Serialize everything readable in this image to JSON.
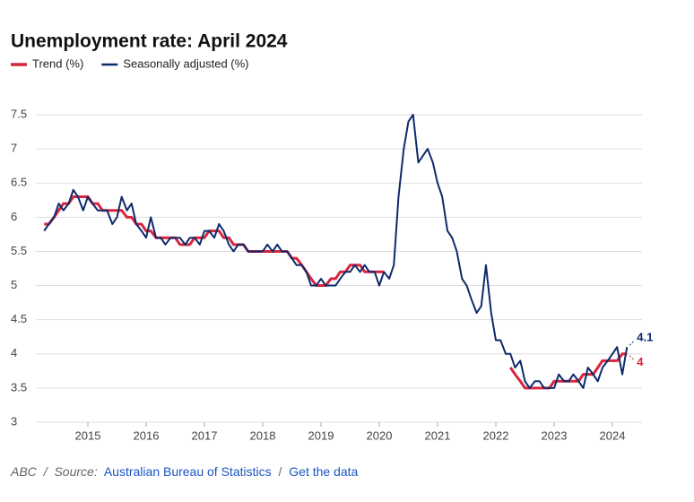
{
  "chart_data": {
    "type": "line",
    "title": "Unemployment rate: April 2024",
    "xlim": [
      2014,
      2024.6
    ],
    "xticks": [
      2015,
      2016,
      2017,
      2018,
      2019,
      2020,
      2021,
      2022,
      2023,
      2024
    ],
    "ylim": [
      3,
      7.5
    ],
    "yticks": [
      3,
      3.5,
      4,
      4.5,
      5,
      5.5,
      6,
      6.5,
      7,
      7.5
    ],
    "grid": true,
    "legend": "top-left",
    "x": [
      2014.25,
      2014.33,
      2014.42,
      2014.5,
      2014.58,
      2014.67,
      2014.75,
      2014.83,
      2014.92,
      2015,
      2015.08,
      2015.17,
      2015.25,
      2015.33,
      2015.42,
      2015.5,
      2015.58,
      2015.67,
      2015.75,
      2015.83,
      2015.92,
      2016,
      2016.08,
      2016.17,
      2016.25,
      2016.33,
      2016.42,
      2016.5,
      2016.58,
      2016.67,
      2016.75,
      2016.83,
      2016.92,
      2017,
      2017.08,
      2017.17,
      2017.25,
      2017.33,
      2017.42,
      2017.5,
      2017.58,
      2017.67,
      2017.75,
      2017.83,
      2017.92,
      2018,
      2018.08,
      2018.17,
      2018.25,
      2018.33,
      2018.42,
      2018.5,
      2018.58,
      2018.67,
      2018.75,
      2018.83,
      2018.92,
      2019,
      2019.08,
      2019.17,
      2019.25,
      2019.33,
      2019.42,
      2019.5,
      2019.58,
      2019.67,
      2019.75,
      2019.83,
      2019.92,
      2020,
      2020.08,
      2020.17,
      2020.25,
      2020.33,
      2020.42,
      2020.5,
      2020.58,
      2020.67,
      2020.75,
      2020.83,
      2020.92,
      2021,
      2021.08,
      2021.17,
      2021.25,
      2021.33,
      2021.42,
      2021.5,
      2021.58,
      2021.67,
      2021.75,
      2021.83,
      2021.92,
      2022,
      2022.08,
      2022.17,
      2022.25,
      2022.33,
      2022.42,
      2022.5,
      2022.58,
      2022.67,
      2022.75,
      2022.83,
      2022.92,
      2023,
      2023.08,
      2023.17,
      2023.25,
      2023.33,
      2023.42,
      2023.5,
      2023.58,
      2023.67,
      2023.75,
      2023.83,
      2023.92,
      2024,
      2024.08,
      2024.17,
      2024.25
    ],
    "series": [
      {
        "name": "Trend (%)",
        "color": "#d7263d",
        "width": 3,
        "end_label": "4",
        "values": [
          5.9,
          5.9,
          6.0,
          6.1,
          6.2,
          6.2,
          6.3,
          6.3,
          6.3,
          6.3,
          6.2,
          6.2,
          6.1,
          6.1,
          6.1,
          6.1,
          6.1,
          6.0,
          6.0,
          5.9,
          5.9,
          5.8,
          5.8,
          5.7,
          5.7,
          5.7,
          5.7,
          5.7,
          5.6,
          5.6,
          5.6,
          5.7,
          5.7,
          5.7,
          5.8,
          5.8,
          5.8,
          5.7,
          5.7,
          5.6,
          5.6,
          5.6,
          5.5,
          5.5,
          5.5,
          5.5,
          5.5,
          5.5,
          5.5,
          5.5,
          5.5,
          5.4,
          5.4,
          5.3,
          5.2,
          5.1,
          5.0,
          5.0,
          5.0,
          5.1,
          5.1,
          5.2,
          5.2,
          5.3,
          5.3,
          5.3,
          5.2,
          5.2,
          5.2,
          5.2,
          5.2,
          null,
          null,
          null,
          null,
          null,
          null,
          null,
          null,
          null,
          null,
          null,
          null,
          null,
          null,
          null,
          null,
          null,
          null,
          null,
          null,
          null,
          null,
          null,
          null,
          null,
          3.8,
          3.7,
          3.6,
          3.5,
          3.5,
          3.5,
          3.5,
          3.5,
          3.5,
          3.6,
          3.6,
          3.6,
          3.6,
          3.6,
          3.6,
          3.7,
          3.7,
          3.7,
          3.8,
          3.9,
          3.9,
          3.9,
          3.9,
          4.0,
          4.0
        ]
      },
      {
        "name": "Seasonally adjusted (%)",
        "color": "#0d2a6b",
        "width": 2,
        "end_label": "4.1",
        "values": [
          5.8,
          5.9,
          6.0,
          6.2,
          6.1,
          6.2,
          6.4,
          6.3,
          6.1,
          6.3,
          6.2,
          6.1,
          6.1,
          6.1,
          5.9,
          6.0,
          6.3,
          6.1,
          6.2,
          5.9,
          5.8,
          5.7,
          6.0,
          5.7,
          5.7,
          5.6,
          5.7,
          5.7,
          5.7,
          5.6,
          5.7,
          5.7,
          5.6,
          5.8,
          5.8,
          5.7,
          5.9,
          5.8,
          5.6,
          5.5,
          5.6,
          5.6,
          5.5,
          5.5,
          5.5,
          5.5,
          5.6,
          5.5,
          5.6,
          5.5,
          5.5,
          5.4,
          5.3,
          5.3,
          5.2,
          5.0,
          5.0,
          5.1,
          5.0,
          5.0,
          5.0,
          5.1,
          5.2,
          5.2,
          5.3,
          5.2,
          5.3,
          5.2,
          5.2,
          5.0,
          5.2,
          5.1,
          5.3,
          6.3,
          7.0,
          7.4,
          7.5,
          6.8,
          6.9,
          7.0,
          6.8,
          6.5,
          6.3,
          5.8,
          5.7,
          5.5,
          5.1,
          5.0,
          4.8,
          4.6,
          4.7,
          5.3,
          4.6,
          4.2,
          4.2,
          4.0,
          4.0,
          3.8,
          3.9,
          3.6,
          3.5,
          3.6,
          3.6,
          3.5,
          3.5,
          3.5,
          3.7,
          3.6,
          3.6,
          3.7,
          3.6,
          3.5,
          3.8,
          3.7,
          3.6,
          3.8,
          3.9,
          4.0,
          4.1,
          3.7,
          4.1
        ]
      }
    ]
  },
  "footer": {
    "credit": "ABC",
    "separator": "/",
    "source_label": "Source:",
    "source": "Australian Bureau of Statistics",
    "link": "Get the data"
  }
}
